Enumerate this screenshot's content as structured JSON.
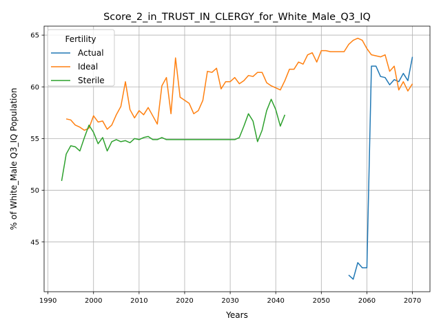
{
  "chart_data": {
    "type": "line",
    "title": "Score_2_in_TRUST_IN_CLERGY_for_White_Male_Q3_IQ",
    "xlabel": "Years",
    "ylabel": "% of White_Male Q3_IQ Population",
    "xlim": [
      1989.15,
      2073.85
    ],
    "ylim": [
      40.19,
      65.87
    ],
    "xticks": [
      1990,
      2000,
      2010,
      2020,
      2030,
      2040,
      2050,
      2060,
      2070
    ],
    "yticks": [
      45,
      50,
      55,
      60,
      65
    ],
    "grid": true,
    "legend": {
      "title": "Fertility",
      "placement": "upper-left"
    },
    "series": [
      {
        "name": "Actual",
        "color": "#1f77b4",
        "x": [
          2056,
          2057,
          2058,
          2059,
          2060,
          2061,
          2062,
          2063,
          2064,
          2065,
          2066,
          2067,
          2068,
          2069,
          2070
        ],
        "y": [
          41.8,
          41.4,
          43.0,
          42.5,
          42.5,
          62.0,
          62.0,
          61.0,
          60.9,
          60.2,
          60.7,
          60.5,
          61.3,
          60.6,
          62.9
        ]
      },
      {
        "name": "Ideal",
        "color": "#ff7f0e",
        "x": [
          1994,
          1995,
          1996,
          1997,
          1998,
          1999,
          2000,
          2001,
          2002,
          2003,
          2004,
          2005,
          2006,
          2007,
          2008,
          2009,
          2010,
          2011,
          2012,
          2013,
          2014,
          2015,
          2016,
          2017,
          2018,
          2019,
          2020,
          2021,
          2022,
          2023,
          2024,
          2025,
          2026,
          2027,
          2028,
          2029,
          2030,
          2031,
          2032,
          2033,
          2034,
          2035,
          2036,
          2037,
          2038,
          2039,
          2040,
          2041,
          2042,
          2043,
          2044,
          2045,
          2046,
          2047,
          2048,
          2049,
          2050,
          2051,
          2052,
          2053,
          2054,
          2055,
          2056,
          2057,
          2058,
          2059,
          2060,
          2061,
          2062,
          2063,
          2064,
          2065,
          2066,
          2067,
          2068,
          2069,
          2070
        ],
        "y": [
          56.9,
          56.8,
          56.3,
          56.1,
          55.8,
          56.0,
          57.2,
          56.6,
          56.7,
          55.9,
          56.3,
          57.3,
          58.1,
          60.5,
          57.8,
          57.0,
          57.7,
          57.3,
          58.0,
          57.2,
          56.4,
          60.1,
          60.9,
          57.4,
          62.8,
          59.0,
          58.7,
          58.4,
          57.4,
          57.7,
          58.7,
          61.5,
          61.4,
          61.8,
          59.8,
          60.5,
          60.5,
          60.9,
          60.3,
          60.6,
          61.1,
          61.0,
          61.4,
          61.4,
          60.4,
          60.1,
          59.9,
          59.7,
          60.6,
          61.7,
          61.7,
          62.4,
          62.2,
          63.1,
          63.3,
          62.4,
          63.5,
          63.5,
          63.4,
          63.4,
          63.4,
          63.4,
          64.1,
          64.5,
          64.7,
          64.5,
          63.7,
          63.1,
          63.0,
          62.9,
          63.1,
          61.5,
          62.0,
          59.7,
          60.5,
          59.6,
          60.3
        ]
      },
      {
        "name": "Sterile",
        "color": "#2ca02c",
        "x": [
          1993,
          1994,
          1995,
          1996,
          1997,
          1998,
          1999,
          2000,
          2001,
          2002,
          2003,
          2004,
          2005,
          2006,
          2007,
          2008,
          2009,
          2010,
          2011,
          2012,
          2013,
          2014,
          2015,
          2016,
          2017,
          2018,
          2019,
          2020,
          2021,
          2022,
          2023,
          2024,
          2025,
          2026,
          2027,
          2028,
          2029,
          2030,
          2031,
          2032,
          2033,
          2034,
          2035,
          2036,
          2037,
          2038,
          2039,
          2040,
          2041,
          2042
        ],
        "y": [
          50.9,
          53.5,
          54.3,
          54.2,
          53.8,
          55.1,
          56.3,
          55.6,
          54.5,
          55.1,
          53.8,
          54.7,
          54.9,
          54.7,
          54.8,
          54.6,
          55.0,
          54.9,
          55.1,
          55.2,
          54.9,
          54.9,
          55.1,
          54.9,
          54.9,
          54.9,
          54.9,
          54.9,
          54.9,
          54.9,
          54.9,
          54.9,
          54.9,
          54.9,
          54.9,
          54.9,
          54.9,
          54.9,
          54.9,
          55.1,
          56.2,
          57.4,
          56.7,
          54.7,
          55.8,
          57.7,
          58.8,
          57.8,
          56.2,
          57.3
        ]
      }
    ]
  }
}
